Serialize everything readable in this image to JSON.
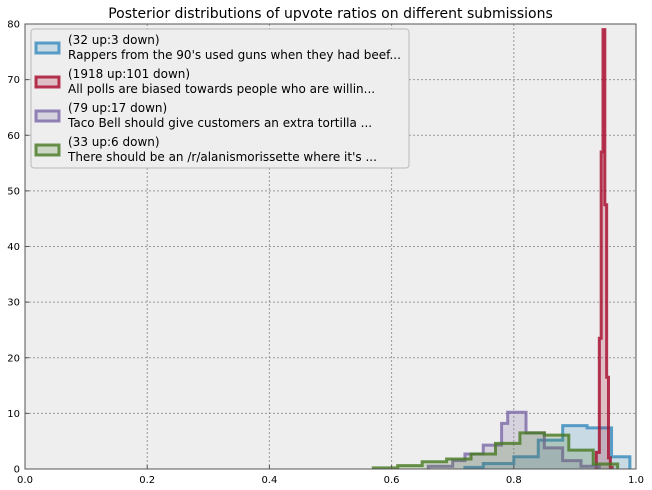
{
  "chart_data": {
    "type": "histogram",
    "title": "Posterior distributions of upvote ratios on different submissions",
    "xlabel": "",
    "ylabel": "",
    "xlim": [
      0.0,
      1.0
    ],
    "ylim": [
      0,
      80
    ],
    "xticks": [
      "0.0",
      "0.2",
      "0.4",
      "0.6",
      "0.8",
      "1.0"
    ],
    "yticks": [
      "0",
      "10",
      "20",
      "30",
      "40",
      "50",
      "60",
      "70",
      "80"
    ],
    "grid": true,
    "legend_position": "top-left",
    "background_color": "#eeeeee",
    "series": [
      {
        "name_line1": "(32 up:3 down)",
        "name_line2": "Rappers from the 90's used guns when they had beef...",
        "color": "#348abd",
        "edges": [
          0.72,
          0.75,
          0.8,
          0.84,
          0.88,
          0.92,
          0.96,
          0.99
        ],
        "heights": [
          0.3,
          1.0,
          2.2,
          5.2,
          7.8,
          7.4,
          2.2
        ]
      },
      {
        "name_line1": "(1918 up:101 down)",
        "name_line2": "All polls are biased towards people who are willin...",
        "color": "#a60628",
        "edges": [
          0.935,
          0.94,
          0.943,
          0.946,
          0.949,
          0.952,
          0.955,
          0.958,
          0.961
        ],
        "heights": [
          3.0,
          23.5,
          57.0,
          79.0,
          47.5,
          16.5,
          2.0,
          0.3
        ]
      },
      {
        "name_line1": "(79 up:17 down)",
        "name_line2": "Taco Bell should give customers an extra tortilla ...",
        "color": "#7a68a6",
        "edges": [
          0.66,
          0.7,
          0.72,
          0.75,
          0.78,
          0.79,
          0.82,
          0.85,
          0.88,
          0.91,
          0.94
        ],
        "heights": [
          0.5,
          1.5,
          2.7,
          4.3,
          8.2,
          10.2,
          6.5,
          3.8,
          1.5,
          0.5
        ]
      },
      {
        "name_line1": "(33 up:6 down)",
        "name_line2": "There should be an /r/alanismorissette where it's ...",
        "color": "#467821",
        "edges": [
          0.57,
          0.61,
          0.65,
          0.69,
          0.73,
          0.77,
          0.81,
          0.85,
          0.89,
          0.93,
          0.97
        ],
        "heights": [
          0.2,
          0.6,
          1.3,
          1.8,
          2.7,
          4.6,
          6.5,
          6.1,
          3.4,
          0.9
        ]
      }
    ]
  }
}
